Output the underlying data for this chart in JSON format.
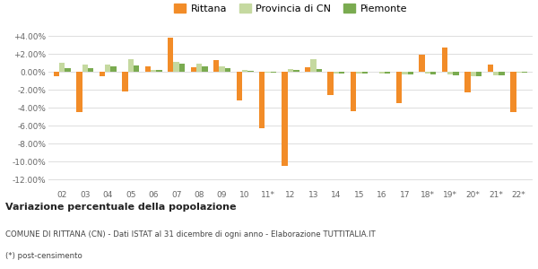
{
  "categories": [
    "02",
    "03",
    "04",
    "05",
    "06",
    "07",
    "08",
    "09",
    "10",
    "11*",
    "12",
    "13",
    "14",
    "15",
    "16",
    "17",
    "18*",
    "19*",
    "20*",
    "21*",
    "22*"
  ],
  "rittana": [
    -0.5,
    -4.5,
    -0.5,
    -2.2,
    0.6,
    3.8,
    0.5,
    1.3,
    -3.2,
    -6.3,
    -10.5,
    0.5,
    -2.6,
    -4.4,
    0.0,
    -3.5,
    1.9,
    2.7,
    -2.3,
    0.8,
    -4.5
  ],
  "provincia_cn": [
    1.0,
    0.8,
    0.8,
    1.4,
    0.2,
    1.1,
    0.9,
    0.6,
    0.2,
    -0.1,
    0.3,
    1.4,
    -0.2,
    -0.2,
    -0.2,
    -0.3,
    -0.2,
    -0.3,
    -0.5,
    -0.4,
    -0.1
  ],
  "piemonte": [
    0.4,
    0.4,
    0.6,
    0.7,
    0.2,
    0.9,
    0.6,
    0.4,
    0.1,
    -0.1,
    0.2,
    0.3,
    -0.2,
    -0.2,
    -0.2,
    -0.3,
    -0.3,
    -0.4,
    -0.5,
    -0.4,
    -0.1
  ],
  "rittana_color": "#f28c28",
  "provincia_color": "#c5d9a0",
  "piemonte_color": "#7aab50",
  "bg_color": "#ffffff",
  "grid_color": "#dddddd",
  "title": "Variazione percentuale della popolazione",
  "legend_labels": [
    "Rittana",
    "Provincia di CN",
    "Piemonte"
  ],
  "footer_line1": "COMUNE DI RITTANA (CN) - Dati ISTAT al 31 dicembre di ogni anno - Elaborazione TUTTITALIA.IT",
  "footer_line2": "(*) post-censimento",
  "ylim": [
    -13.0,
    5.0
  ],
  "yticks": [
    4.0,
    2.0,
    0.0,
    -2.0,
    -4.0,
    -6.0,
    -8.0,
    -10.0,
    -12.0
  ],
  "bar_width": 0.25
}
